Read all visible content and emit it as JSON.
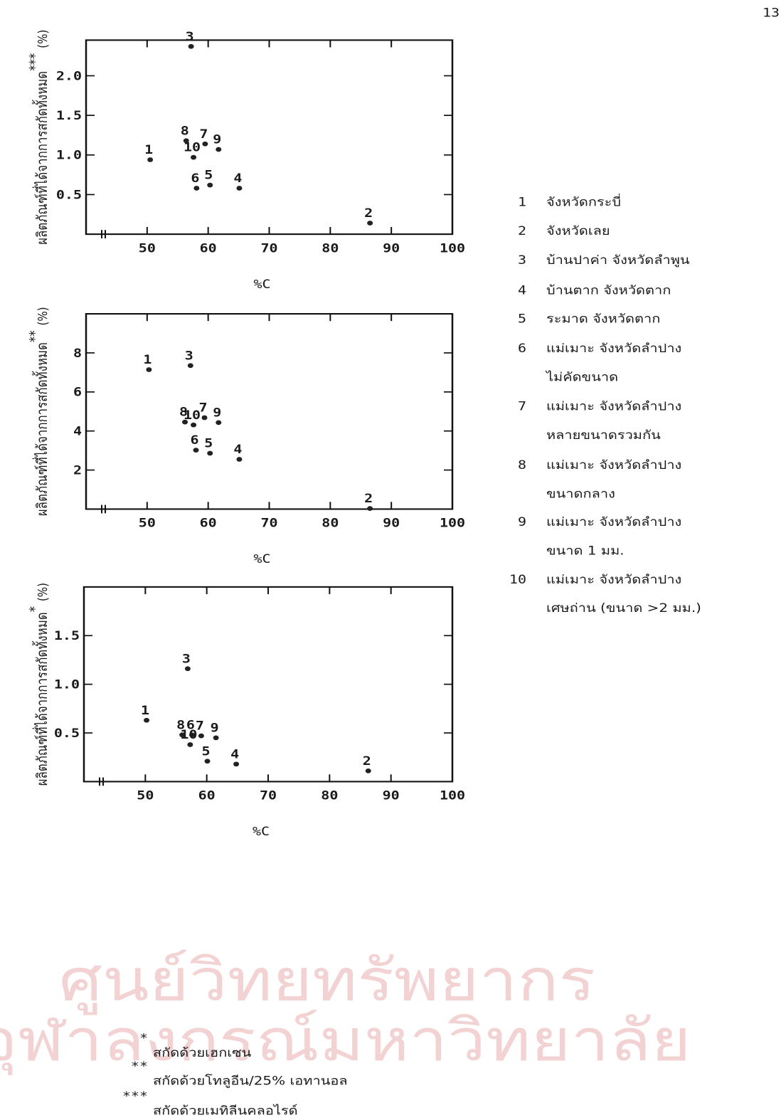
{
  "page_number": "13",
  "chart_data": [
    {
      "type": "scatter",
      "xlabel": "%C",
      "ylabel": "ผลิตภัณฑ์ที่ได้จากการสกัดทั้งหมด",
      "ylabel_note": "***",
      "ylabel_unit": "(%)",
      "xlim": [
        40,
        100
      ],
      "xticks": [
        50,
        60,
        70,
        80,
        90,
        100
      ],
      "ylim": [
        0,
        2.45
      ],
      "yticks": [
        0.5,
        {
          "value": 1,
          "label": "1.0"
        },
        1.5,
        {
          "value": 2,
          "label": "2.0"
        }
      ],
      "color": "#222",
      "point_labels": [
        "1",
        "2",
        "3",
        "4",
        "5",
        "6",
        "7",
        "8",
        "9",
        "10"
      ],
      "x": [
        50.5,
        86.5,
        57.2,
        65.1,
        60.3,
        58.1,
        59.5,
        56.4,
        61.7,
        57.6
      ],
      "values": [
        0.94,
        0.14,
        2.37,
        0.58,
        0.62,
        0.58,
        1.14,
        1.18,
        1.07,
        0.97
      ]
    },
    {
      "type": "scatter",
      "xlabel": "%C",
      "ylabel": "ผลิตภัณฑ์ที่ได้จากการสกัดทั้งหมด",
      "ylabel_note": "**",
      "ylabel_unit": "(%)",
      "xlim": [
        40,
        100
      ],
      "xticks": [
        50,
        60,
        70,
        80,
        90,
        100
      ],
      "ylim": [
        0,
        10
      ],
      "yticks": [
        2,
        4,
        6,
        8
      ],
      "color": "#222",
      "point_labels": [
        "1",
        "2",
        "3",
        "4",
        "5",
        "6",
        "7",
        "8",
        "9",
        "10"
      ],
      "x": [
        50.3,
        86.5,
        57.1,
        65.1,
        60.3,
        58.0,
        59.4,
        56.2,
        61.7,
        57.6
      ],
      "values": [
        7.14,
        0.03,
        7.35,
        2.55,
        2.86,
        3.02,
        4.68,
        4.46,
        4.43,
        4.31
      ]
    },
    {
      "type": "scatter",
      "xlabel": "%C",
      "ylabel": "ผลิตภัณฑ์ที่ได้จากการสกัดทั้งหมด",
      "ylabel_note": "*",
      "ylabel_unit": "(%)",
      "xlim": [
        40,
        100
      ],
      "xticks": [
        50,
        60,
        70,
        80,
        90,
        100
      ],
      "ylim": [
        0,
        2.0
      ],
      "yticks": [
        0.5,
        {
          "value": 1,
          "label": "1.0"
        },
        1.5
      ],
      "color": "#222",
      "point_labels": [
        "1",
        "2",
        "3",
        "4",
        "5",
        "6",
        "7",
        "8",
        "9",
        "10"
      ],
      "x": [
        50.2,
        86.3,
        56.9,
        64.8,
        60.1,
        57.6,
        59.1,
        56.0,
        61.5,
        57.3
      ],
      "values": [
        0.63,
        0.11,
        1.16,
        0.18,
        0.21,
        0.48,
        0.47,
        0.48,
        0.45,
        0.38
      ]
    }
  ],
  "legend": [
    {
      "number": "1",
      "lines": [
        "จังหวัดกระบี่"
      ]
    },
    {
      "number": "2",
      "lines": [
        "จังหวัดเลย"
      ]
    },
    {
      "number": "3",
      "lines": [
        "บ้านปาค่า จังหวัดลำพูน"
      ]
    },
    {
      "number": "4",
      "lines": [
        "บ้านตาก จังหวัดตาก"
      ]
    },
    {
      "number": "5",
      "lines": [
        "ระมาด จังหวัดตาก"
      ]
    },
    {
      "number": "6",
      "lines": [
        "แม่เมาะ จังหวัดลำปาง",
        "ไม่คัดขนาด"
      ]
    },
    {
      "number": "7",
      "lines": [
        "แม่เมาะ จังหวัดลำปาง",
        "หลายขนาดรวมกัน"
      ]
    },
    {
      "number": "8",
      "lines": [
        "แม่เมาะ จังหวัดลำปาง",
        "ขนาดกลาง"
      ]
    },
    {
      "number": "9",
      "lines": [
        "แม่เมาะ จังหวัดลำปาง",
        "ขนาด 1 มม."
      ]
    },
    {
      "number": "10",
      "lines": [
        "แม่เมาะ จังหวัดลำปาง",
        "เศษถ่าน (ขนาด >2 มม.)"
      ]
    }
  ],
  "footnotes": [
    {
      "mark": "*",
      "text": "สกัดด้วยเฮกเซน"
    },
    {
      "mark": "**",
      "text": "สกัดด้วยโทลูอีน/25% เอทานอล"
    },
    {
      "mark": "***",
      "text": "สกัดด้วยเมทิลีนคลอไรด์"
    }
  ],
  "watermark": [
    "ศูนย์วิทยทรัพยากร",
    "จุฬาลงกรณ์มหาวิทยาลัย"
  ]
}
